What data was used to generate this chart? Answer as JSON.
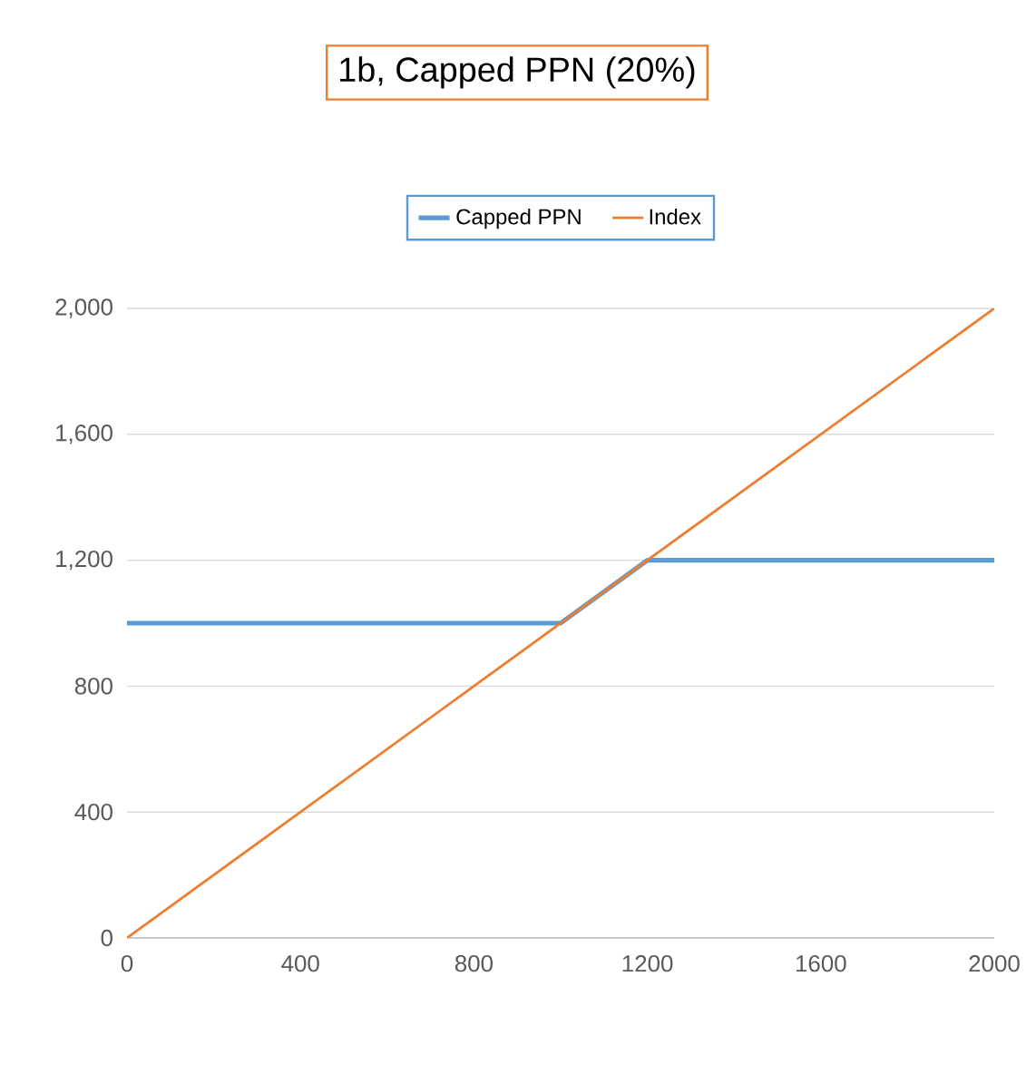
{
  "chart_data": {
    "type": "line",
    "title": "1b, Capped PPN (20%)",
    "series": [
      {
        "name": "Capped PPN",
        "color": "#5b9bd5",
        "x": [
          0,
          1000,
          1200,
          2000
        ],
        "values": [
          1000,
          1000,
          1200,
          1200
        ]
      },
      {
        "name": "Index",
        "color": "#ed7d31",
        "x": [
          0,
          2000
        ],
        "values": [
          0,
          2000
        ]
      }
    ],
    "xlim": [
      0,
      2000
    ],
    "xticks": [
      0,
      400,
      800,
      1200,
      1600,
      2000
    ],
    "ylim": [
      0,
      2000
    ],
    "yticks": [
      {
        "value": 0,
        "label": "0"
      },
      {
        "value": 400,
        "label": "400"
      },
      {
        "value": 800,
        "label": "800"
      },
      {
        "value": 1200,
        "label": "1,200"
      },
      {
        "value": 1600,
        "label": "1,600"
      },
      {
        "value": 2000,
        "label": "2,000"
      }
    ],
    "grid": "y",
    "legend": "top",
    "marker": "none",
    "line_style": "solid"
  }
}
